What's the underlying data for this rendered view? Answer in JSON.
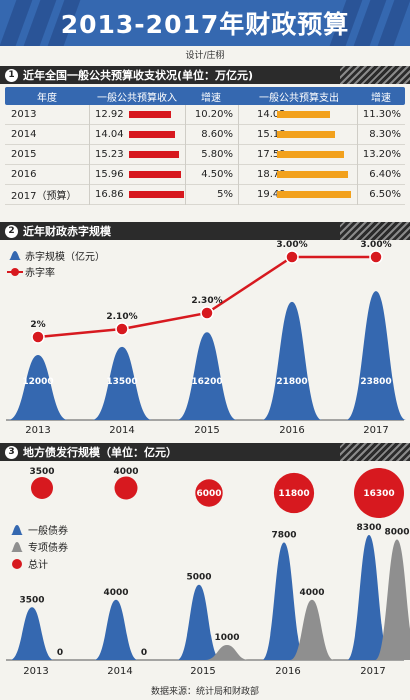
{
  "title": "2013-2017年财政预算",
  "credit": "设计/庄栩",
  "section1": {
    "number": "1",
    "title": "近年全国一般公共预算收支状况(单位：万亿元)",
    "headers": [
      "年度",
      "一般公共预算收入",
      "增速",
      "一般公共预算支出",
      "增速"
    ],
    "rows": [
      {
        "year": "2013",
        "income": "12.92",
        "income_growth": "10.20%",
        "expense": "14.02",
        "expense_growth": "11.30%"
      },
      {
        "year": "2014",
        "income": "14.04",
        "income_growth": "8.60%",
        "expense": "15.18",
        "expense_growth": "8.30%"
      },
      {
        "year": "2015",
        "income": "15.23",
        "income_growth": "5.80%",
        "expense": "17.59",
        "expense_growth": "13.20%"
      },
      {
        "year": "2016",
        "income": "15.96",
        "income_growth": "4.50%",
        "expense": "18.78",
        "expense_growth": "6.40%"
      },
      {
        "year": "2017（预算）",
        "income": "16.86",
        "income_growth": "5%",
        "expense": "19.49",
        "expense_growth": "6.50%"
      }
    ]
  },
  "section2": {
    "number": "2",
    "title": "近年财政赤字规模"
  },
  "section3": {
    "number": "3",
    "title": "地方债发行规模（单位：亿元）"
  },
  "source": "数据来源：统计局和财政部",
  "colors": {
    "blue": "#3568b0",
    "red": "#d7191f",
    "gray": "#8f8f8f",
    "orange": "#f2a11d",
    "dark": "#2b2b2b"
  },
  "chart_data": [
    {
      "type": "table",
      "unit": "万亿元",
      "columns": [
        "年度",
        "一般公共预算收入",
        "增速",
        "一般公共预算支出",
        "增速"
      ],
      "rows": [
        [
          "2013",
          12.92,
          "10.20%",
          14.02,
          "11.30%"
        ],
        [
          "2014",
          14.04,
          "8.60%",
          15.18,
          "8.30%"
        ],
        [
          "2015",
          15.23,
          "5.80%",
          17.59,
          "13.20%"
        ],
        [
          "2016",
          15.96,
          "4.50%",
          18.78,
          "6.40%"
        ],
        [
          "2017（预算）",
          16.86,
          "5%",
          19.49,
          "6.50%"
        ]
      ]
    },
    {
      "type": "bar",
      "categories": [
        "2013",
        "2014",
        "2015",
        "2016",
        "2017"
      ],
      "series": [
        {
          "name": "赤字规模（亿元）",
          "values": [
            12000,
            13500,
            16200,
            21800,
            23800
          ],
          "labels": [
            "12000",
            "13500",
            "16200",
            "21800",
            "23800"
          ]
        },
        {
          "name": "赤字率",
          "type": "line",
          "values": [
            2.0,
            2.1,
            2.3,
            3.0,
            3.0
          ],
          "labels": [
            "2%",
            "2.10%",
            "2.30%",
            "3.00%",
            "3.00%"
          ]
        }
      ],
      "legend_position": "top-left"
    },
    {
      "type": "bar",
      "categories": [
        "2013",
        "2014",
        "2015",
        "2016",
        "2017"
      ],
      "series": [
        {
          "name": "一般债券",
          "values": [
            3500,
            4000,
            5000,
            7800,
            8300
          ]
        },
        {
          "name": "专项债券",
          "values": [
            0,
            0,
            1000,
            4000,
            8000
          ]
        },
        {
          "name": "总计",
          "type": "bubble",
          "values": [
            3500,
            4000,
            6000,
            11800,
            16300
          ]
        }
      ],
      "legend_position": "left"
    }
  ]
}
